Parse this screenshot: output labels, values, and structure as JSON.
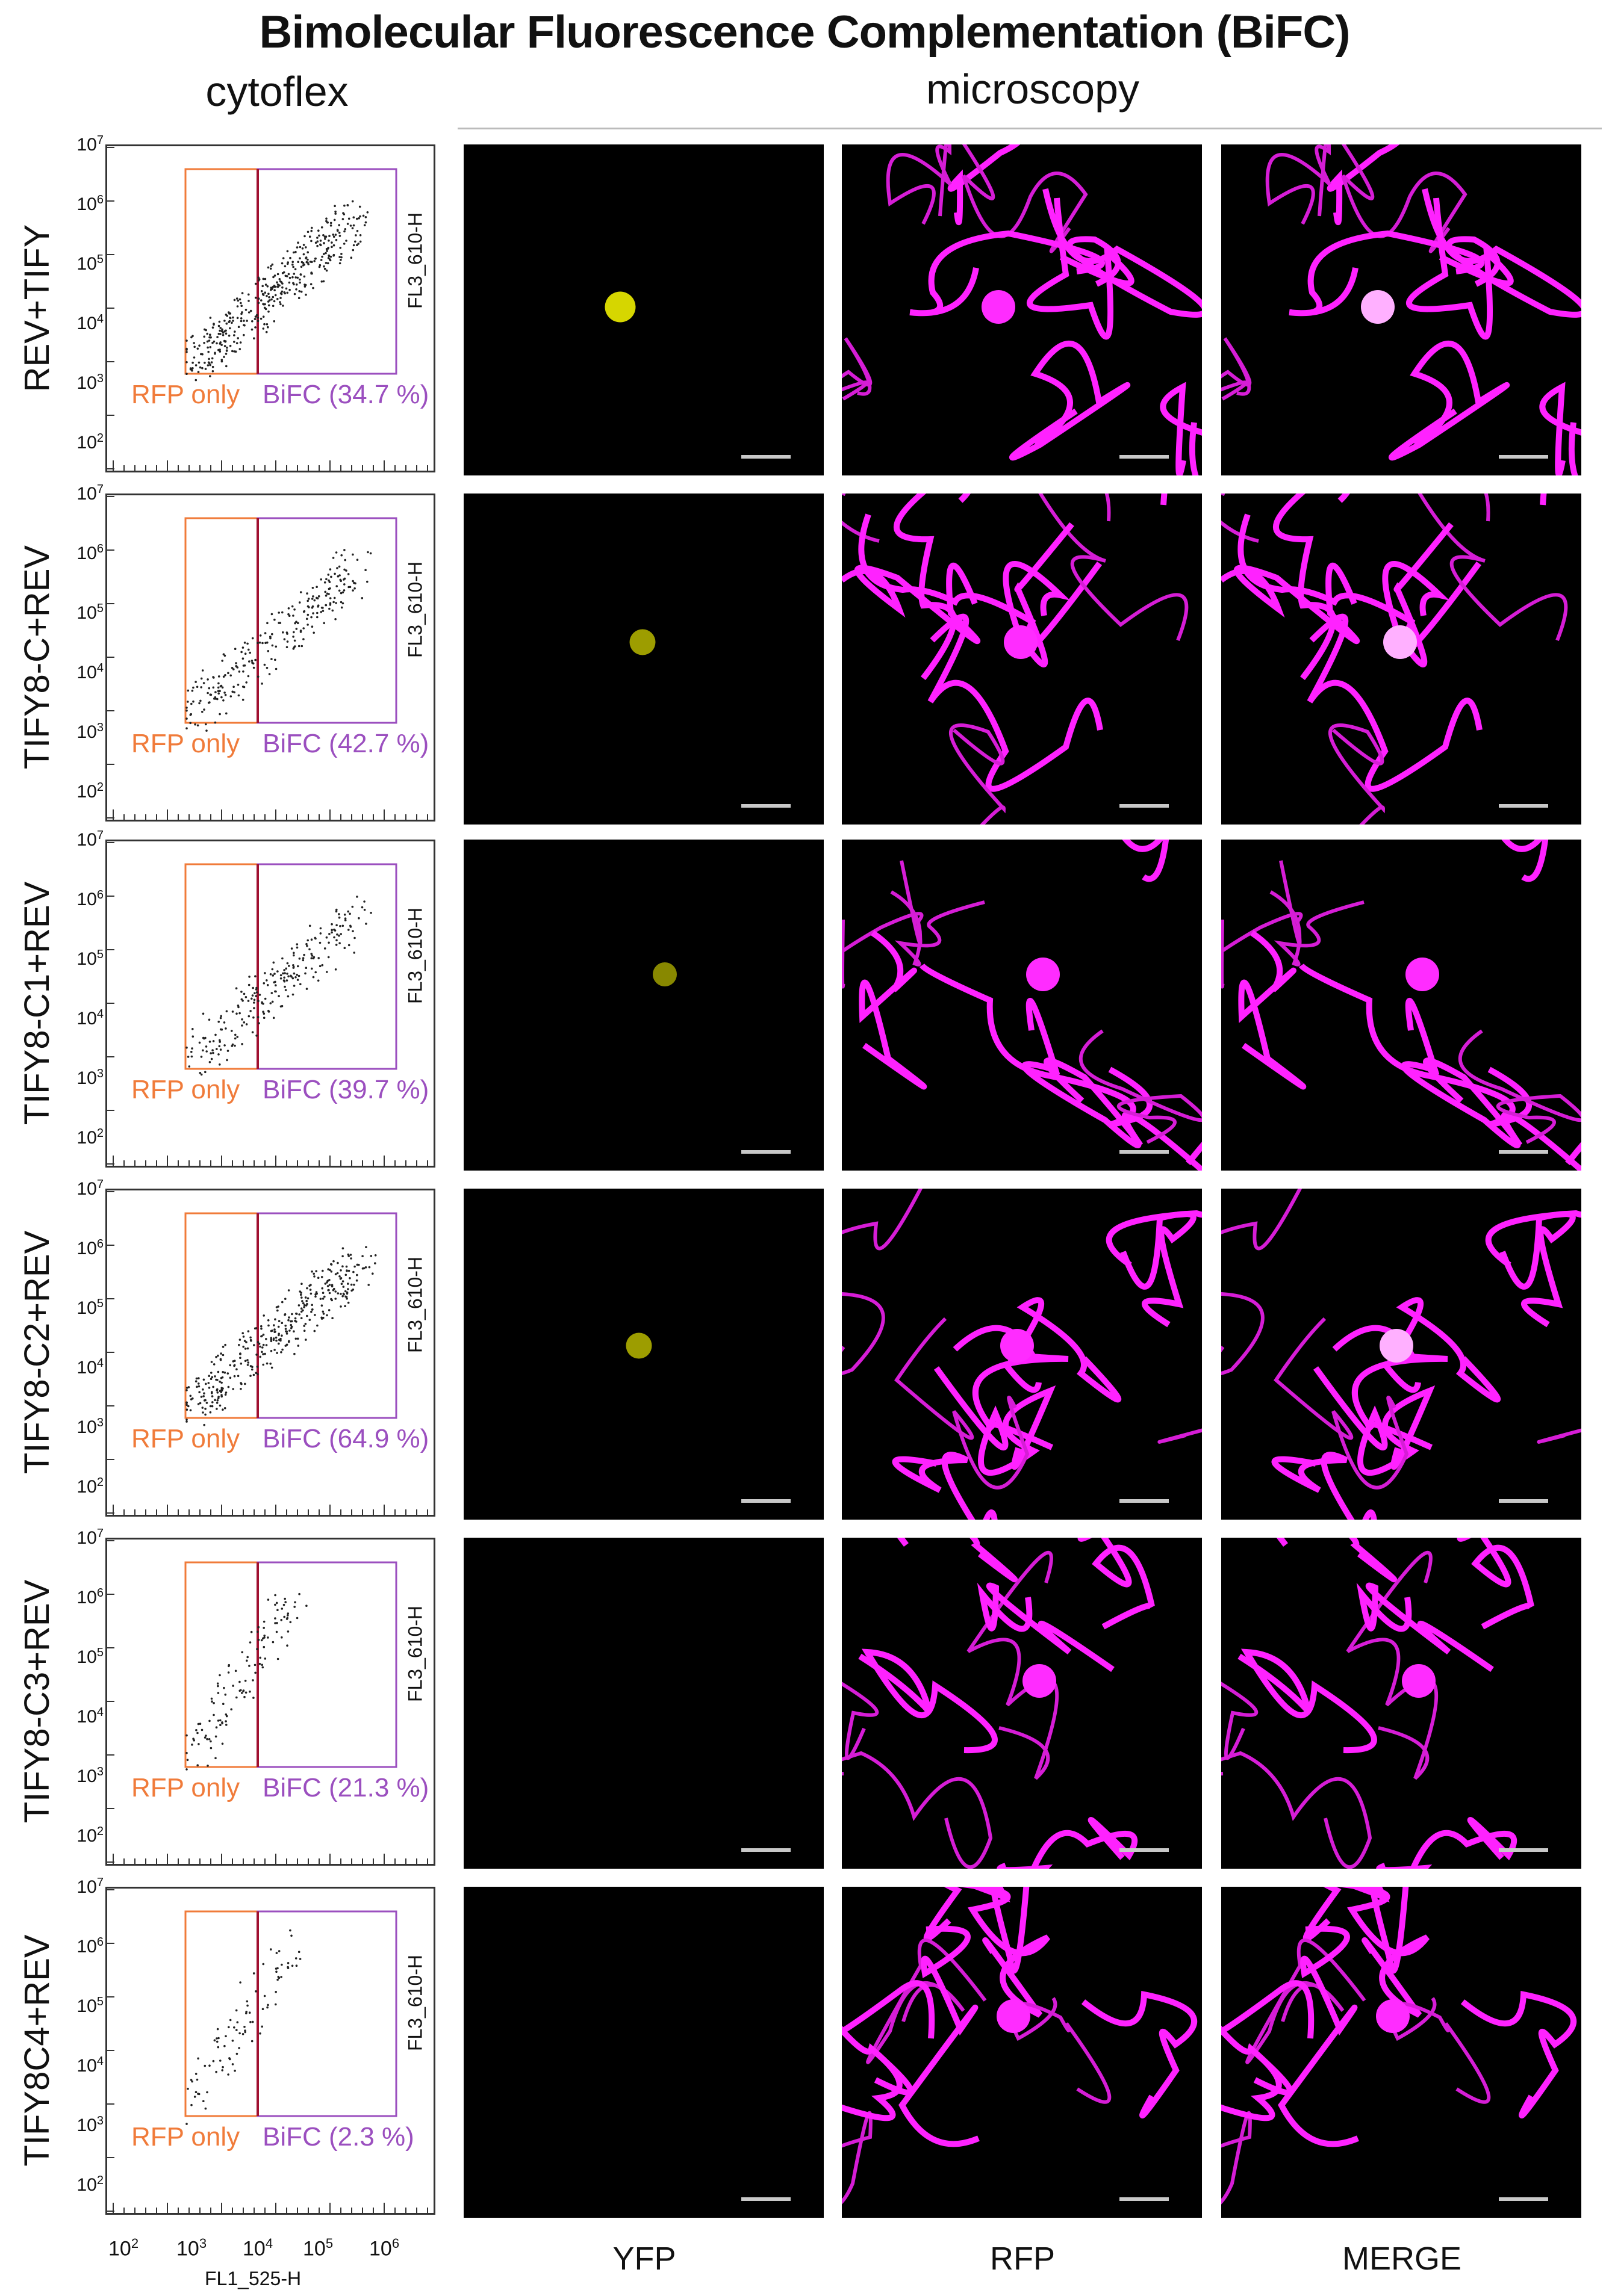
{
  "title": "Bimolecular Fluorescence Complementation (BiFC)",
  "headers": {
    "left": "cytoflex",
    "right": "microscopy"
  },
  "columns": [
    "YFP",
    "RFP",
    "MERGE"
  ],
  "cytometry": {
    "x_axis_label": "FL1_525-H",
    "y_axis_label": "FL3_610-H",
    "x_ticks": [
      "10",
      "10",
      "10",
      "10",
      "10"
    ],
    "x_tick_exponents": [
      "2",
      "3",
      "4",
      "5",
      "6"
    ],
    "y_ticks": [
      "10",
      "10",
      "10",
      "10",
      "10",
      "10"
    ],
    "y_tick_exponents": [
      "7",
      "6",
      "5",
      "4",
      "3",
      "2"
    ],
    "gate_rfp_label": "RFP only"
  },
  "rows": [
    {
      "label": "REV+TIFY",
      "bifc": "BiFC (34.7 %)",
      "yfp_level": 0.95
    },
    {
      "label": "TIFY8-C+REV",
      "bifc": "BiFC (42.7 %)",
      "yfp_level": 0.55
    },
    {
      "label": "TIFY8-C1+REV",
      "bifc": "BiFC (39.7 %)",
      "yfp_level": 0.4
    },
    {
      "label": "TIFY8-C2+REV",
      "bifc": "BiFC (64.9 %)",
      "yfp_level": 0.55
    },
    {
      "label": "TIFY8-C3+REV",
      "bifc": "BiFC (21.3 %)",
      "yfp_level": 0.0
    },
    {
      "label": "TIFY8C4+REV",
      "bifc": "BiFC (2.3 %)",
      "yfp_level": 0.0
    }
  ],
  "colors": {
    "rfp_gate": "#f07b3a",
    "bifc_gate": "#9b4fbf",
    "yfp": "#e8e800",
    "rfp": "#ff22ff"
  }
}
